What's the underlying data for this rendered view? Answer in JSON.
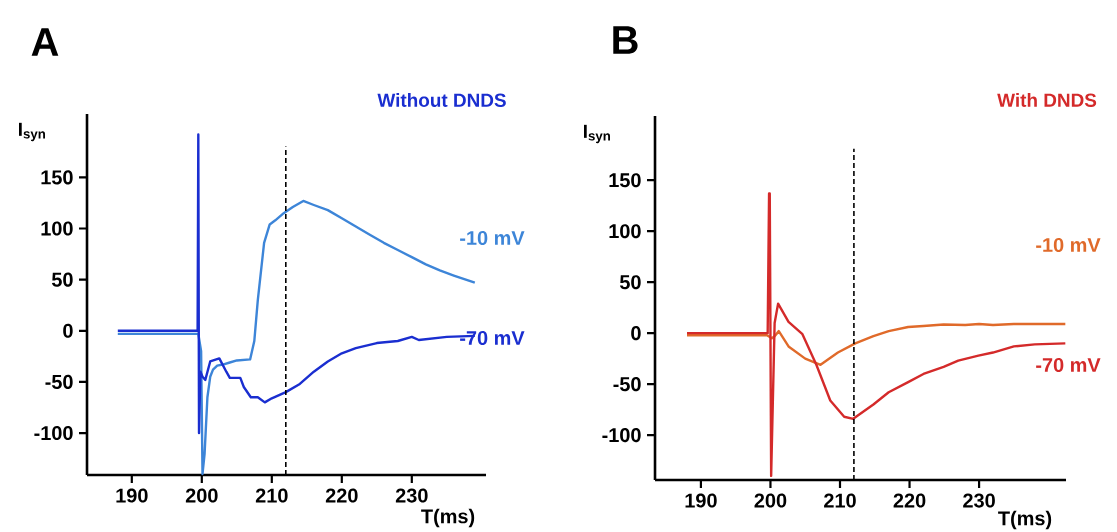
{
  "chart_data": [
    {
      "type": "line",
      "title": "A",
      "subtitle": "Without DNDS",
      "xlabel": "T(ms)",
      "ylabel": "I$_{syn}$",
      "xlim": [
        183.6,
        240.6
      ],
      "ylim": [
        -141,
        212
      ],
      "xticks": [
        190,
        200,
        210,
        220,
        230
      ],
      "yticks": [
        -100,
        -50,
        0,
        50,
        100,
        150
      ],
      "ref_lines": [
        {
          "axis": "x",
          "value": 212,
          "color": "#000000",
          "line_style": "dashed"
        }
      ],
      "series": [
        {
          "name": "-10 mV",
          "color": "#3d85d8",
          "x": [
            188,
            199.5,
            199.9,
            200.1,
            200.4,
            200.8,
            201.2,
            201.6,
            202.2,
            203,
            204,
            205,
            206.9,
            207.5,
            208,
            208.9,
            209.7,
            210.5,
            211.7,
            213,
            214.5,
            216,
            218,
            220,
            222,
            224,
            226,
            228,
            230,
            232,
            234,
            236,
            239
          ],
          "values": [
            -3,
            -3,
            -20,
            -140,
            -120,
            -65,
            -45,
            -38,
            -34,
            -33,
            -31,
            -29,
            -28,
            -10,
            30,
            86,
            104,
            108,
            115,
            121,
            127,
            123,
            118,
            110,
            102,
            94,
            86,
            79,
            72,
            65,
            59,
            54,
            47
          ]
        },
        {
          "name": "-70 mV",
          "color": "#1a2ed0",
          "x": [
            188,
            199.4,
            199.5,
            199.6,
            199.8,
            200.1,
            200.5,
            201.2,
            202.5,
            203.5,
            204,
            205.5,
            206,
            207,
            208,
            209,
            210,
            212,
            214,
            216,
            218,
            220,
            222,
            225,
            228,
            230,
            231,
            235,
            239
          ],
          "values": [
            0,
            0,
            192,
            -100,
            -40,
            -45,
            -48,
            -30,
            -27,
            -40,
            -46,
            -46,
            -55,
            -65,
            -65,
            -70,
            -66,
            -60,
            -52,
            -40,
            -30,
            -22,
            -17,
            -12,
            -10,
            -6,
            -9,
            -6,
            -5
          ]
        }
      ]
    },
    {
      "type": "line",
      "title": "B",
      "subtitle": "With DNDS",
      "xlabel": "T(ms)",
      "ylabel": "I$_{syn}$",
      "xlim": [
        183.4,
        242.5
      ],
      "ylim": [
        -144,
        213
      ],
      "xticks": [
        190,
        200,
        210,
        220,
        230
      ],
      "yticks": [
        -100,
        -50,
        0,
        50,
        100,
        150
      ],
      "ref_lines": [
        {
          "axis": "x",
          "value": 212,
          "color": "#000000",
          "line_style": "dashed"
        }
      ],
      "series": [
        {
          "name": "-10 mV",
          "color": "#e06a2a",
          "x": [
            188,
            199.5,
            200.2,
            200.6,
            201.2,
            202.6,
            205,
            207.2,
            209.7,
            212.2,
            214.8,
            217,
            219.8,
            222,
            224.9,
            228,
            230,
            232,
            235,
            238,
            242.4
          ],
          "values": [
            -2,
            -2,
            -5,
            -3,
            2,
            -13,
            -25,
            -31,
            -19,
            -10,
            -3,
            2,
            6,
            7,
            8.5,
            8,
            9,
            8,
            9,
            9,
            9
          ]
        },
        {
          "name": "-70 mV",
          "color": "#d42a2a",
          "x": [
            188,
            199.6,
            199.8,
            199.9,
            200.1,
            200.6,
            201.1,
            202.6,
            204.6,
            206.6,
            208.6,
            210.6,
            211.9,
            214.8,
            217,
            219.8,
            222,
            224.9,
            227,
            229.9,
            232,
            235,
            238,
            242.4
          ],
          "values": [
            0,
            0,
            137,
            137,
            -140,
            10,
            29,
            11,
            -1,
            -31,
            -66,
            -82,
            -84,
            -70,
            -58,
            -48,
            -40,
            -33,
            -27,
            -22,
            -19,
            -13,
            -11,
            -10
          ]
        }
      ]
    }
  ]
}
